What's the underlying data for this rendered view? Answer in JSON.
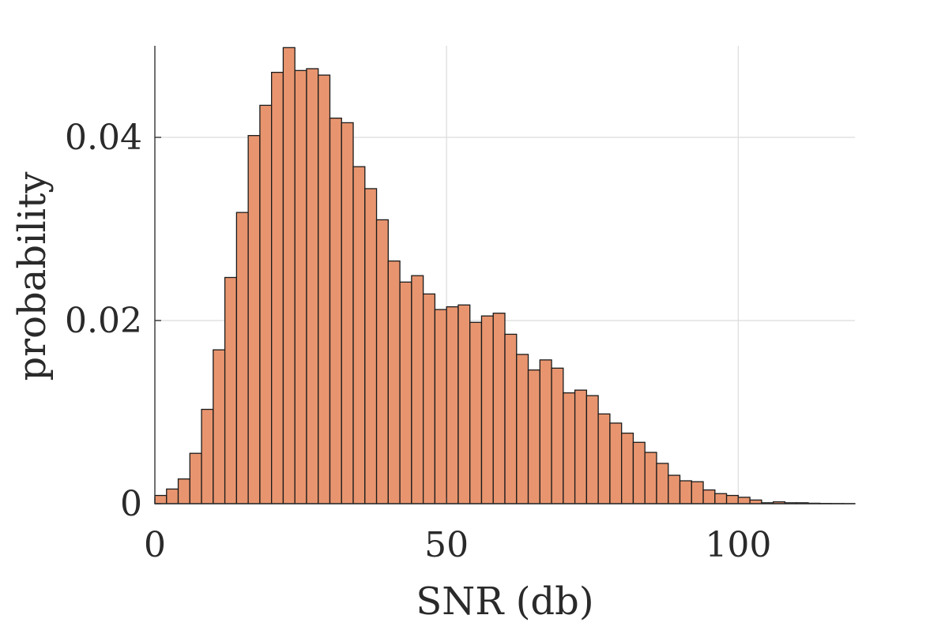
{
  "chart_data": {
    "type": "bar",
    "title": "",
    "xlabel": "SNR (db)",
    "ylabel": "probability",
    "xlim": [
      0,
      120
    ],
    "ylim": [
      0,
      0.05
    ],
    "xticks": [
      0,
      50,
      100
    ],
    "xtick_labels": [
      "0",
      "50",
      "100"
    ],
    "yticks": [
      0,
      0.02,
      0.04
    ],
    "ytick_labels": [
      "0",
      "0.02",
      "0.04"
    ],
    "grid": true,
    "bar_color": "#e8956f",
    "edge_color": "#1a1a1a",
    "bin_width": 2,
    "bin_starts": [
      0,
      2,
      4,
      6,
      8,
      10,
      12,
      14,
      16,
      18,
      20,
      22,
      24,
      26,
      28,
      30,
      32,
      34,
      36,
      38,
      40,
      42,
      44,
      46,
      48,
      50,
      52,
      54,
      56,
      58,
      60,
      62,
      64,
      66,
      68,
      70,
      72,
      74,
      76,
      78,
      80,
      82,
      84,
      86,
      88,
      90,
      92,
      94,
      96,
      98,
      100,
      102,
      104,
      106,
      108,
      110,
      112,
      114,
      116,
      118
    ],
    "values": [
      0.0009,
      0.0016,
      0.0027,
      0.0055,
      0.0103,
      0.0168,
      0.0247,
      0.0318,
      0.0402,
      0.0435,
      0.0471,
      0.0498,
      0.0473,
      0.0475,
      0.0468,
      0.0421,
      0.0416,
      0.0368,
      0.0344,
      0.031,
      0.0265,
      0.0242,
      0.0249,
      0.0229,
      0.0212,
      0.0215,
      0.0217,
      0.0198,
      0.0205,
      0.0208,
      0.0185,
      0.0163,
      0.0146,
      0.0157,
      0.0148,
      0.0121,
      0.0124,
      0.0118,
      0.0098,
      0.0088,
      0.0077,
      0.0067,
      0.0056,
      0.0044,
      0.0031,
      0.0025,
      0.0024,
      0.0015,
      0.0011,
      0.0009,
      0.0007,
      0.0004,
      0.0001,
      0.0002,
      0.0001,
      0.0001,
      5e-05,
      3e-05,
      2e-05,
      1e-05
    ]
  }
}
